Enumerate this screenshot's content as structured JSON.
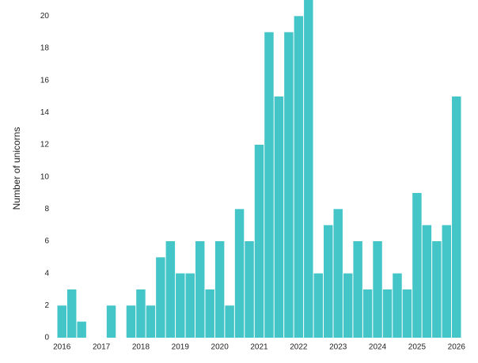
{
  "chart_data": {
    "type": "bar",
    "y_label": "Number of unicorns",
    "categories": [
      "2016",
      null,
      null,
      null,
      "2017",
      null,
      null,
      null,
      "2018",
      null,
      null,
      null,
      "2019",
      null,
      null,
      null,
      "2020",
      null,
      null,
      null,
      "2021",
      null,
      null,
      null,
      "2022",
      null,
      null,
      null,
      "2023",
      null,
      null,
      null,
      "2024",
      null,
      null,
      null,
      "2025",
      null,
      null,
      null,
      "2026"
    ],
    "values": [
      2,
      3,
      1,
      0,
      0,
      2,
      0,
      2,
      3,
      2,
      5,
      6,
      4,
      4,
      6,
      3,
      6,
      2,
      8,
      6,
      12,
      19,
      15,
      19,
      20,
      21,
      4,
      7,
      8,
      4,
      6,
      3,
      6,
      3,
      4,
      3,
      9,
      7,
      6,
      7,
      15
    ],
    "color": "#44c5c8",
    "ylim": [
      0,
      21
    ],
    "yticks": [
      0,
      2,
      4,
      6,
      8,
      10,
      12,
      14,
      16,
      18,
      20
    ],
    "grid": false
  }
}
